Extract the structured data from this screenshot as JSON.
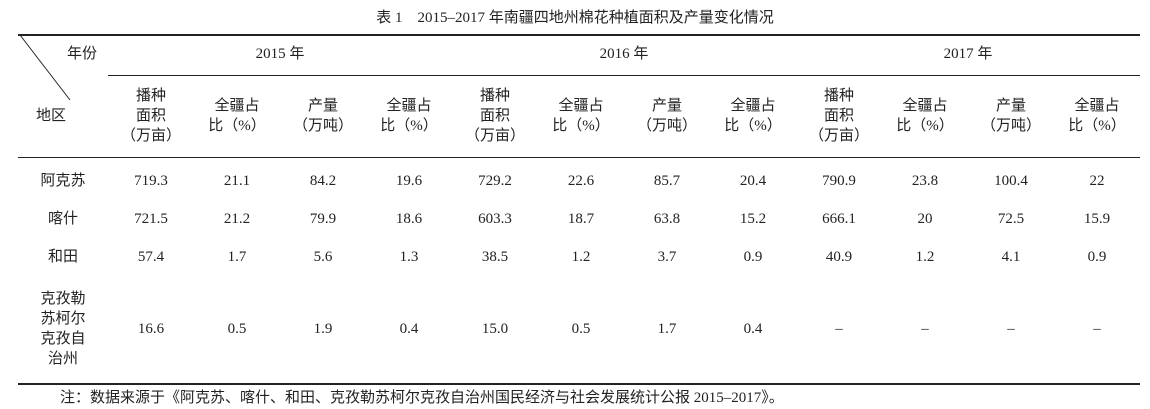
{
  "caption": "表 1　2015–2017 年南疆四地州棉花种植面积及产量变化情况",
  "table": {
    "corner_top": "年份",
    "corner_bottom": "地区",
    "years": [
      "2015 年",
      "2016 年",
      "2017 年"
    ],
    "columns": [
      "播种\n面积\n（万亩）",
      "全疆占\n比（%）",
      "产量\n（万吨）",
      "全疆占\n比（%）",
      "播种\n面积\n（万亩）",
      "全疆占\n比（%）",
      "产量\n（万吨）",
      "全疆占\n比（%）",
      "播种\n面积\n（万亩）",
      "全疆占\n比（%）",
      "产量\n（万吨）",
      "全疆占\n比（%）"
    ],
    "rows": [
      {
        "region": "阿克苏",
        "cells": [
          "719.3",
          "21.1",
          "84.2",
          "19.6",
          "729.2",
          "22.6",
          "85.7",
          "20.4",
          "790.9",
          "23.8",
          "100.4",
          "22"
        ]
      },
      {
        "region": "喀什",
        "cells": [
          "721.5",
          "21.2",
          "79.9",
          "18.6",
          "603.3",
          "18.7",
          "63.8",
          "15.2",
          "666.1",
          "20",
          "72.5",
          "15.9"
        ]
      },
      {
        "region": "和田",
        "cells": [
          "57.4",
          "1.7",
          "5.6",
          "1.3",
          "38.5",
          "1.2",
          "3.7",
          "0.9",
          "40.9",
          "1.2",
          "4.1",
          "0.9"
        ]
      },
      {
        "region": "克孜勒\n苏柯尔\n克孜自\n治州",
        "cells": [
          "16.6",
          "0.5",
          "1.9",
          "0.4",
          "15.0",
          "0.5",
          "1.7",
          "0.4",
          "–",
          "–",
          "–",
          "–"
        ]
      }
    ]
  },
  "note": "注：数据来源于《阿克苏、喀什、和田、克孜勒苏柯尔克孜自治州国民经济与社会发展统计公报 2015–2017》。"
}
